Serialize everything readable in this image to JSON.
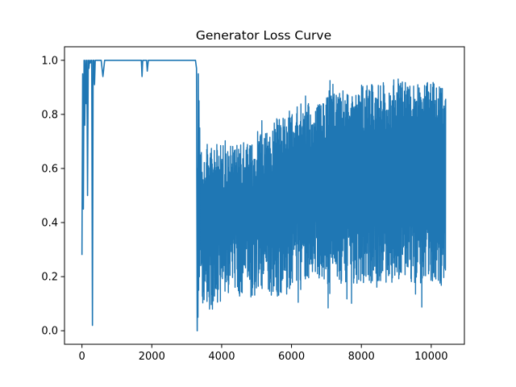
{
  "chart_data": {
    "type": "line",
    "title": "Generator Loss Curve",
    "xlabel": "",
    "ylabel": "",
    "xlim": [
      -500,
      10950
    ],
    "ylim": [
      -0.05,
      1.05
    ],
    "x_ticks": [
      0,
      2000,
      4000,
      6000,
      8000,
      10000
    ],
    "x_tick_labels": [
      "0",
      "2000",
      "4000",
      "6000",
      "8000",
      "10000"
    ],
    "y_ticks": [
      0.0,
      0.2,
      0.4,
      0.6,
      0.8,
      1.0
    ],
    "y_tick_labels": [
      "0.0",
      "0.2",
      "0.4",
      "0.6",
      "0.8",
      "1.0"
    ],
    "grid": false,
    "line_color": "#1f77b4",
    "series": [
      {
        "x": [
          0,
          20,
          40,
          60,
          80,
          100,
          120,
          140,
          160,
          180,
          200,
          220,
          240,
          260,
          280,
          300,
          320,
          340,
          360,
          380,
          400,
          450,
          500,
          550,
          600,
          650,
          700,
          1000,
          1500,
          1700,
          1720,
          1740,
          1800,
          1850,
          1870,
          1900,
          2500,
          3000,
          3250,
          3280,
          3300,
          3310,
          3320,
          3330,
          3340,
          3350,
          3360,
          3370,
          3380,
          3390,
          3400
        ],
        "y": [
          0.28,
          0.95,
          0.45,
          1.0,
          0.76,
          1.0,
          0.84,
          1.0,
          0.5,
          1.0,
          0.97,
          1.0,
          0.99,
          1.0,
          1.0,
          0.02,
          1.0,
          1.0,
          0.91,
          1.0,
          1.0,
          1.0,
          1.0,
          1.0,
          0.94,
          1.0,
          1.0,
          1.0,
          1.0,
          1.0,
          0.94,
          1.0,
          1.0,
          1.0,
          0.96,
          1.0,
          1.0,
          1.0,
          1.0,
          0.97,
          0.0,
          0.6,
          0.05,
          0.95,
          0.15,
          0.85,
          0.2,
          0.75,
          0.3,
          0.65,
          0.4
        ]
      },
      {
        "segments": [
          {
            "x_start": 3400,
            "x_end": 4000,
            "y_low": 0.2,
            "y_high": 0.65
          },
          {
            "x_start": 4000,
            "x_end": 5000,
            "y_low": 0.25,
            "y_high": 0.65
          },
          {
            "x_start": 5000,
            "x_end": 5500,
            "y_low": 0.25,
            "y_high": 0.7
          },
          {
            "x_start": 5500,
            "x_end": 6000,
            "y_low": 0.25,
            "y_high": 0.75
          },
          {
            "x_start": 6000,
            "x_end": 7000,
            "y_low": 0.3,
            "y_high": 0.8
          },
          {
            "x_start": 7000,
            "x_end": 8000,
            "y_low": 0.3,
            "y_high": 0.85
          },
          {
            "x_start": 8000,
            "x_end": 9000,
            "y_low": 0.3,
            "y_high": 0.87
          },
          {
            "x_start": 9000,
            "x_end": 10000,
            "y_low": 0.3,
            "y_high": 0.88
          },
          {
            "x_start": 10000,
            "x_end": 10420,
            "y_low": 0.3,
            "y_high": 0.88
          }
        ],
        "peak_min": 0.08,
        "peak_max": 0.95
      }
    ]
  }
}
